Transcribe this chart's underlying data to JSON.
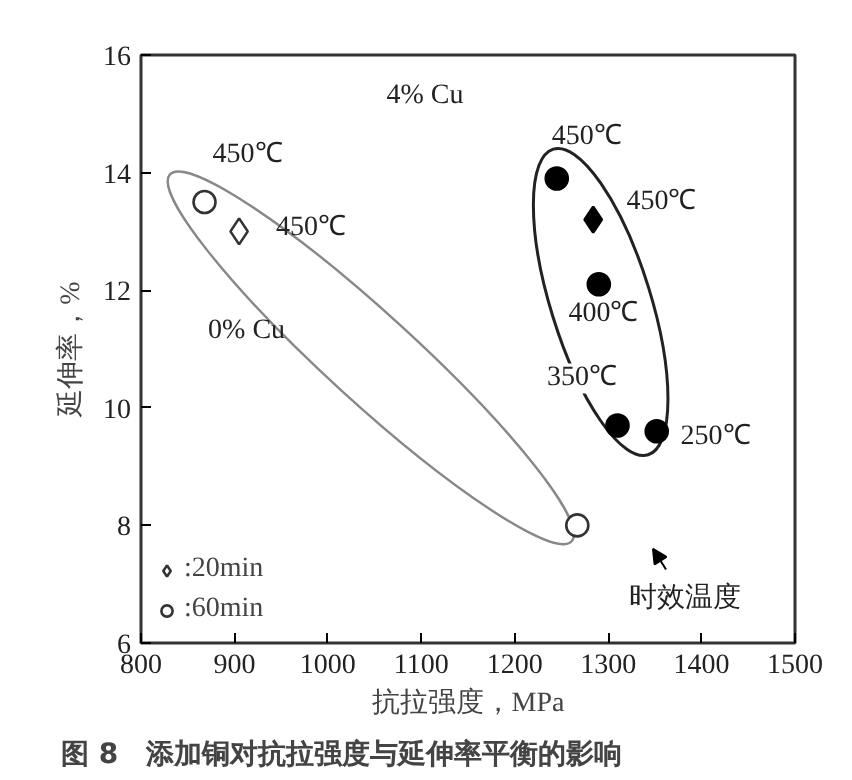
{
  "chart_data": {
    "type": "scatter",
    "title": "图 8　添加铜对抗拉强度与延伸率平衡的影响",
    "xlabel": "抗拉强度，MPa",
    "ylabel": "延伸率，%",
    "xlim": [
      800,
      1500
    ],
    "ylim": [
      6,
      16
    ],
    "xticks": [
      800,
      900,
      1000,
      1100,
      1200,
      1300,
      1400,
      1500
    ],
    "yticks": [
      6,
      8,
      10,
      12,
      14,
      16
    ],
    "grid": false,
    "legend": "bottom left",
    "series": [
      {
        "name": ":20min",
        "color": "#333333",
        "marker": "diamond",
        "x": [
          905
        ],
        "values": [
          13.0
        ]
      },
      {
        "name": ":60min",
        "color": "#333333",
        "marker": "circle",
        "x": [
          868,
          1267
        ],
        "values": [
          13.5,
          8.0
        ]
      },
      {
        "color": "#000000",
        "marker": "circle",
        "x": [
          1245,
          1290,
          1310,
          1352
        ],
        "values": [
          13.9,
          12.1,
          9.7,
          9.6
        ]
      },
      {
        "color": "#000000",
        "marker": "diamond",
        "x": [
          1284
        ],
        "values": [
          13.2
        ]
      }
    ],
    "annotations": [
      "4% Cu",
      "450℃",
      "450℃",
      "0% Cu",
      "450℃",
      "450℃",
      "400℃",
      "350℃",
      "250℃",
      "时效温度"
    ]
  }
}
